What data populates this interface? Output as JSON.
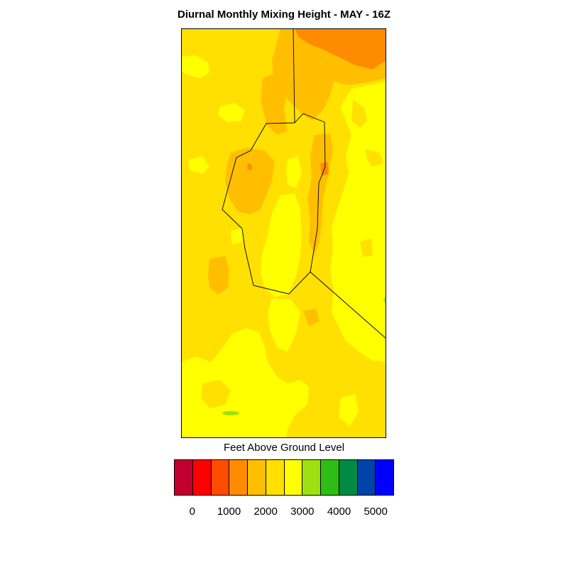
{
  "title": "Diurnal Monthly Mixing Height - MAY - 16Z",
  "legend": {
    "title": "Feet Above Ground Level",
    "colors": [
      "#c0002e",
      "#ff0000",
      "#ff4d00",
      "#ff8c00",
      "#ffbf00",
      "#ffe000",
      "#ffff00",
      "#9ee010",
      "#2ebd14",
      "#008a45",
      "#0044aa",
      "#0000ff"
    ],
    "tick_labels": [
      "0",
      "1000",
      "2000",
      "3000",
      "4000",
      "5000"
    ]
  },
  "map": {
    "palette": {
      "base": "#ffe000",
      "light": "#ffff00",
      "orange": "#ffbf00",
      "dark_orange": "#ff8c00",
      "green": "#9ee010"
    }
  }
}
